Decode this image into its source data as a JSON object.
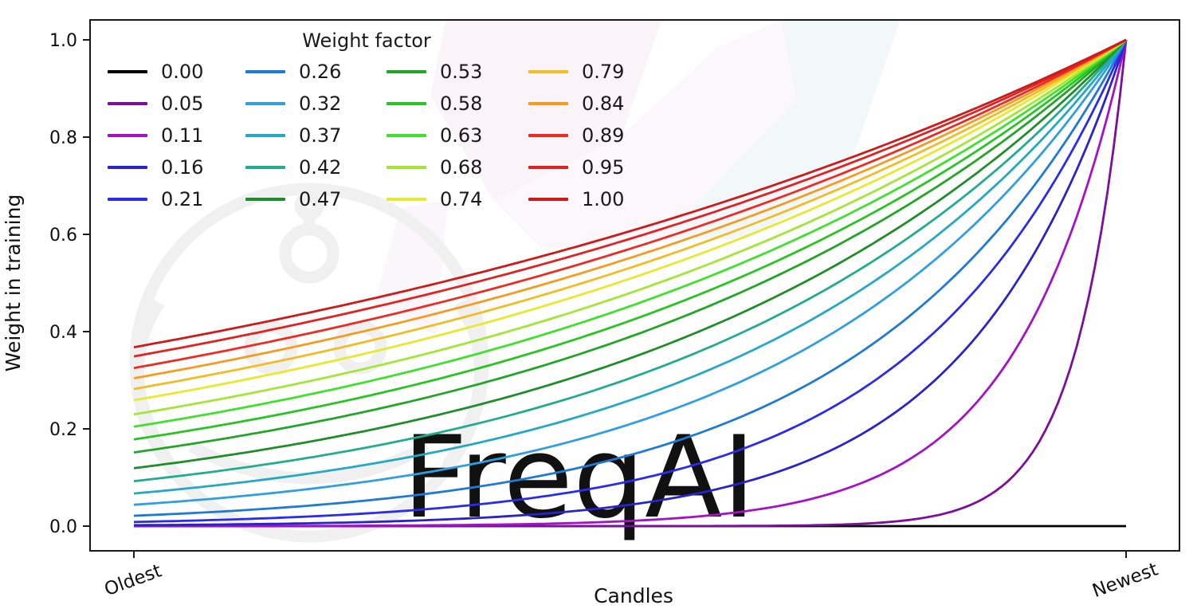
{
  "chart_data": {
    "type": "line",
    "title": "",
    "xlabel": "Candles",
    "ylabel": "Weight in training",
    "x_tick_labels": [
      "Oldest",
      "Newest"
    ],
    "y_ticks": [
      0.0,
      0.2,
      0.4,
      0.6,
      0.8,
      1.0
    ],
    "xlim": [
      0,
      1
    ],
    "ylim": [
      0,
      1.0
    ],
    "grid": false,
    "legend_title": "Weight factor",
    "legend_position": "upper-left, 4 columns x 5 rows",
    "curve_formula": "weight(x) = exp(-(1 - x) / factor) for factor > 0; factor 0.00 is flat at 0",
    "series": [
      {
        "label": "0.00",
        "factor": 0.0,
        "color": "#000000",
        "value_at_oldest": 0.0,
        "value_at_newest": 0.0
      },
      {
        "label": "0.05",
        "factor": 0.05,
        "color": "#7d0d9c",
        "value_at_oldest": 0.0,
        "value_at_newest": 1.0
      },
      {
        "label": "0.11",
        "factor": 0.11,
        "color": "#a411c9",
        "value_at_oldest": 0.0001,
        "value_at_newest": 1.0
      },
      {
        "label": "0.16",
        "factor": 0.16,
        "color": "#2a23cc",
        "value_at_oldest": 0.002,
        "value_at_newest": 1.0
      },
      {
        "label": "0.21",
        "factor": 0.21,
        "color": "#2b2bef",
        "value_at_oldest": 0.009,
        "value_at_newest": 1.0
      },
      {
        "label": "0.26",
        "factor": 0.26,
        "color": "#1f7ad6",
        "value_at_oldest": 0.021,
        "value_at_newest": 1.0
      },
      {
        "label": "0.32",
        "factor": 0.32,
        "color": "#2f9fe0",
        "value_at_oldest": 0.044,
        "value_at_newest": 1.0
      },
      {
        "label": "0.37",
        "factor": 0.37,
        "color": "#24a9c2",
        "value_at_oldest": 0.067,
        "value_at_newest": 1.0
      },
      {
        "label": "0.42",
        "factor": 0.42,
        "color": "#20ad8d",
        "value_at_oldest": 0.092,
        "value_at_newest": 1.0
      },
      {
        "label": "0.47",
        "factor": 0.47,
        "color": "#1e8e2a",
        "value_at_oldest": 0.119,
        "value_at_newest": 1.0
      },
      {
        "label": "0.53",
        "factor": 0.53,
        "color": "#21a626",
        "value_at_oldest": 0.151,
        "value_at_newest": 1.0
      },
      {
        "label": "0.58",
        "factor": 0.58,
        "color": "#27c51f",
        "value_at_oldest": 0.178,
        "value_at_newest": 1.0
      },
      {
        "label": "0.63",
        "factor": 0.63,
        "color": "#3fe22b",
        "value_at_oldest": 0.204,
        "value_at_newest": 1.0
      },
      {
        "label": "0.68",
        "factor": 0.68,
        "color": "#a3e635",
        "value_at_oldest": 0.23,
        "value_at_newest": 1.0
      },
      {
        "label": "0.74",
        "factor": 0.74,
        "color": "#e7e92e",
        "value_at_oldest": 0.259,
        "value_at_newest": 1.0
      },
      {
        "label": "0.79",
        "factor": 0.79,
        "color": "#f2bc24",
        "value_at_oldest": 0.282,
        "value_at_newest": 1.0
      },
      {
        "label": "0.84",
        "factor": 0.84,
        "color": "#f59b20",
        "value_at_oldest": 0.304,
        "value_at_newest": 1.0
      },
      {
        "label": "0.89",
        "factor": 0.89,
        "color": "#ee2b23",
        "value_at_oldest": 0.325,
        "value_at_newest": 1.0
      },
      {
        "label": "0.95",
        "factor": 0.95,
        "color": "#e12222",
        "value_at_oldest": 0.349,
        "value_at_newest": 1.0
      },
      {
        "label": "1.00",
        "factor": 1.0,
        "color": "#cd1a1a",
        "value_at_oldest": 0.368,
        "value_at_newest": 1.0
      }
    ],
    "watermark_text": "FreqAI",
    "watermark_colors": {
      "logo_gray": "#f0f0f0",
      "text_gray": "#ededed",
      "pale_pink": "#f6e9f0",
      "pale_blue": "#e9f2f7"
    }
  }
}
